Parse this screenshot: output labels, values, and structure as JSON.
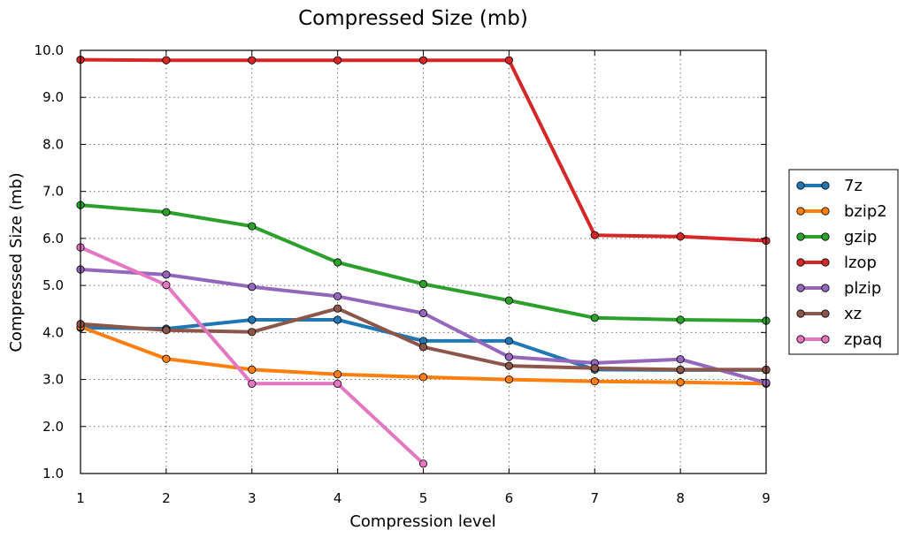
{
  "chart_data": {
    "type": "line",
    "title": "Compressed Size (mb)",
    "xlabel": "Compression level",
    "ylabel": "Compressed Size (mb)",
    "x": [
      1,
      2,
      3,
      4,
      5,
      6,
      7,
      8,
      9
    ],
    "xlim": [
      1,
      9
    ],
    "ylim": [
      1.0,
      10.0
    ],
    "xticks": [
      "1",
      "2",
      "3",
      "4",
      "5",
      "6",
      "7",
      "8",
      "9"
    ],
    "yticks": [
      {
        "value": 1.0,
        "label": "1.0"
      },
      {
        "value": 2.0,
        "label": "2.0"
      },
      {
        "value": 3.0,
        "label": "3.0"
      },
      {
        "value": 4.0,
        "label": "4.0"
      },
      {
        "value": 5.0,
        "label": "5.0"
      },
      {
        "value": 6.0,
        "label": "6.0"
      },
      {
        "value": 7.0,
        "label": "7.0"
      },
      {
        "value": 8.0,
        "label": "8.0"
      },
      {
        "value": 9.0,
        "label": "9.0"
      },
      {
        "value": 10.0,
        "label": "10.0"
      }
    ],
    "grid": true,
    "legend_position": "outside-right",
    "series": [
      {
        "name": "7z",
        "color": "#1f77b4",
        "values": [
          4.1,
          4.08,
          4.27,
          4.27,
          3.82,
          3.82,
          3.21,
          3.2,
          3.2
        ]
      },
      {
        "name": "bzip2",
        "color": "#ff7f0e",
        "values": [
          4.12,
          3.44,
          3.21,
          3.11,
          3.05,
          3.0,
          2.96,
          2.94,
          2.91
        ]
      },
      {
        "name": "gzip",
        "color": "#2ca02c",
        "values": [
          6.71,
          6.56,
          6.26,
          5.49,
          5.03,
          4.68,
          4.31,
          4.27,
          4.25
        ]
      },
      {
        "name": "lzop",
        "color": "#d62728",
        "values": [
          9.8,
          9.79,
          9.79,
          9.79,
          9.79,
          9.79,
          6.07,
          6.04,
          5.95
        ]
      },
      {
        "name": "plzip",
        "color": "#9467bd",
        "values": [
          5.34,
          5.23,
          4.97,
          4.77,
          4.41,
          3.48,
          3.35,
          3.43,
          2.93
        ]
      },
      {
        "name": "xz",
        "color": "#8c564b",
        "values": [
          4.18,
          4.05,
          4.01,
          4.51,
          3.69,
          3.29,
          3.24,
          3.21,
          3.21
        ]
      },
      {
        "name": "zpaq",
        "color": "#e377c2",
        "values": [
          5.81,
          5.01,
          2.91,
          2.91,
          1.21,
          null,
          null,
          null,
          null
        ]
      }
    ]
  }
}
